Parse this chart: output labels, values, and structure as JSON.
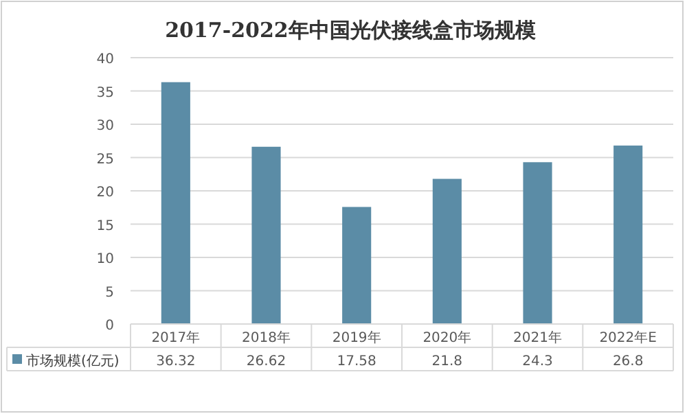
{
  "chart_data": {
    "type": "bar",
    "title": "2017-2022年中国光伏接线盒市场规模",
    "categories": [
      "2017年",
      "2018年",
      "2019年",
      "2020年",
      "2021年",
      "2022年E"
    ],
    "series": [
      {
        "name": "市场规模(亿元)",
        "color": "#5b8ca6",
        "values": [
          36.32,
          26.62,
          17.58,
          21.8,
          24.3,
          26.8
        ]
      }
    ],
    "ylim": [
      0,
      40
    ],
    "yticks": [
      0,
      5,
      10,
      15,
      20,
      25,
      30,
      35,
      40
    ],
    "grid": "y",
    "legend": "bottom",
    "data_labels": true
  }
}
